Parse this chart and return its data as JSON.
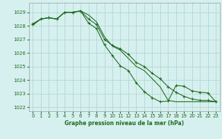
{
  "title": "Graphe pression niveau de la mer (hPa)",
  "bg_color": "#d5f0ee",
  "grid_color": "#b0d8cc",
  "line_color": "#1e6b1e",
  "xlim": [
    -0.5,
    23.5
  ],
  "ylim": [
    1021.7,
    1029.7
  ],
  "yticks": [
    1022,
    1023,
    1024,
    1025,
    1026,
    1027,
    1028,
    1029
  ],
  "xticks": [
    0,
    1,
    2,
    3,
    4,
    5,
    6,
    7,
    8,
    9,
    10,
    11,
    12,
    13,
    14,
    15,
    16,
    17,
    18,
    19,
    20,
    21,
    22,
    23
  ],
  "series1_x": [
    0,
    1,
    2,
    3,
    4,
    5,
    6,
    7,
    8,
    9,
    10,
    11,
    12,
    13,
    14,
    15,
    16,
    17,
    18,
    19,
    20,
    21,
    22,
    23
  ],
  "series1_y": [
    1028.1,
    1028.5,
    1028.6,
    1028.5,
    1029.0,
    1029.0,
    1029.1,
    1028.2,
    1027.8,
    1026.6,
    1025.8,
    1025.05,
    1024.7,
    1023.8,
    1023.15,
    1022.7,
    1022.4,
    1022.45,
    1023.6,
    1023.55,
    1023.2,
    1023.1,
    1023.05,
    1022.4
  ],
  "series2_x": [
    0,
    1,
    2,
    3,
    4,
    5,
    6,
    7,
    8,
    9,
    10,
    11,
    12,
    13,
    14,
    15,
    16,
    17,
    18,
    19,
    20,
    21,
    22,
    23
  ],
  "series2_y": [
    1028.15,
    1028.5,
    1028.6,
    1028.5,
    1029.0,
    1029.0,
    1029.1,
    1028.5,
    1028.1,
    1027.0,
    1026.55,
    1026.3,
    1025.9,
    1025.3,
    1025.0,
    1024.5,
    1024.1,
    1023.5,
    1023.1,
    1022.8,
    1022.6,
    1022.5,
    1022.5,
    1022.4
  ],
  "series3_x": [
    0,
    1,
    2,
    3,
    4,
    5,
    6,
    7,
    8,
    9,
    10,
    11,
    12,
    13,
    14,
    15,
    16,
    17,
    18,
    19,
    20,
    21,
    22,
    23
  ],
  "series3_y": [
    1028.05,
    1028.5,
    1028.6,
    1028.5,
    1029.0,
    1029.0,
    1029.1,
    1028.8,
    1028.3,
    1027.2,
    1026.5,
    1026.2,
    1025.6,
    1025.0,
    1024.7,
    1024.1,
    1023.5,
    1022.5,
    1022.4,
    1022.4,
    1022.4,
    1022.4,
    1022.4,
    1022.4
  ]
}
